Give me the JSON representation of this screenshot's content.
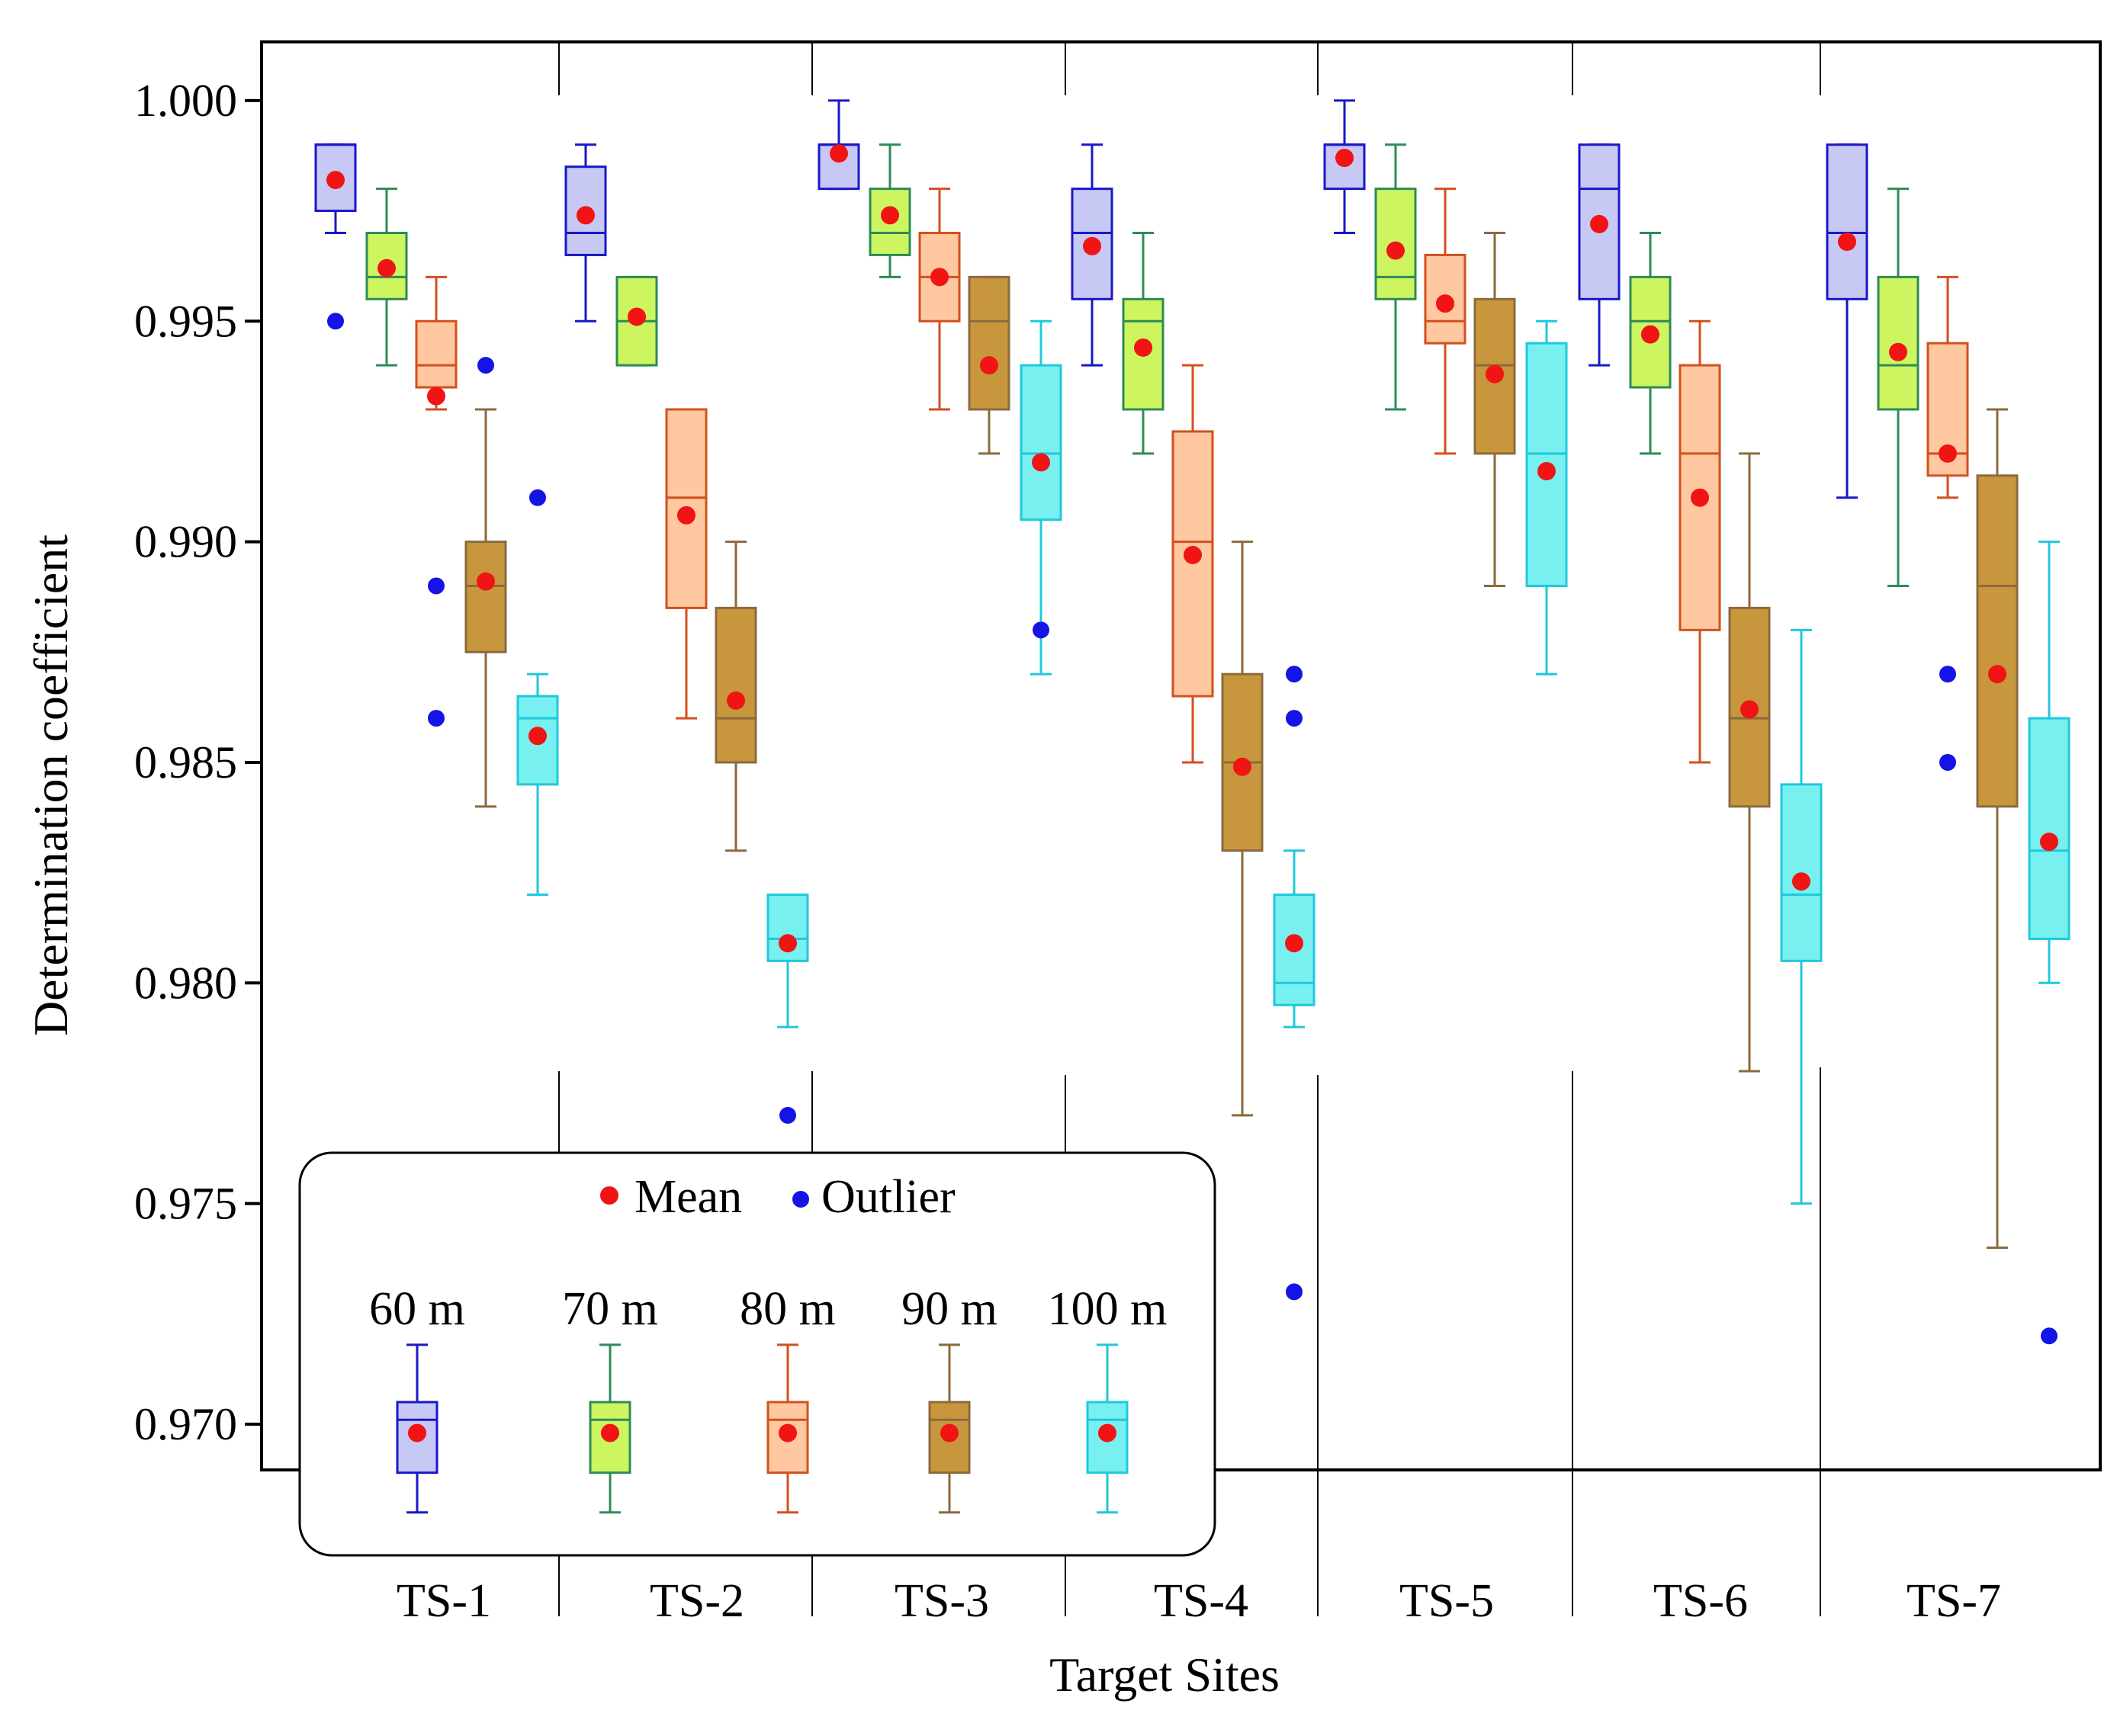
{
  "chart_data": {
    "type": "box",
    "xlabel": "Target Sites",
    "ylabel": "Determination coefficient",
    "ylim": [
      0.9688,
      1.0013
    ],
    "yticks": [
      "0.970",
      "0.975",
      "0.980",
      "0.985",
      "0.990",
      "0.995",
      "1.000"
    ],
    "ytick_values": [
      0.97,
      0.975,
      0.98,
      0.985,
      0.99,
      0.995,
      1.0
    ],
    "categories": [
      "TS-1",
      "TS-2",
      "TS-3",
      "TS-4",
      "TS-5",
      "TS-6",
      "TS-7"
    ],
    "series": [
      {
        "name": "60 m",
        "fill": "#c8c8f5",
        "stroke": "#1818c8",
        "boxes": [
          {
            "whislo": 0.997,
            "q1": 0.9975,
            "med": 0.999,
            "q3": 0.999,
            "whishi": 0.999,
            "mean": 0.9982,
            "fliers": [
              0.995
            ]
          },
          {
            "whislo": 0.995,
            "q1": 0.9965,
            "med": 0.997,
            "q3": 0.9985,
            "whishi": 0.999,
            "mean": 0.9974,
            "fliers": []
          },
          {
            "whislo": 0.998,
            "q1": 0.998,
            "med": 0.999,
            "q3": 0.999,
            "whishi": 1.0,
            "mean": 0.9988,
            "fliers": []
          },
          {
            "whislo": 0.994,
            "q1": 0.9955,
            "med": 0.997,
            "q3": 0.998,
            "whishi": 0.999,
            "mean": 0.9967,
            "fliers": []
          },
          {
            "whislo": 0.997,
            "q1": 0.998,
            "med": 0.999,
            "q3": 0.999,
            "whishi": 1.0,
            "mean": 0.9987,
            "fliers": []
          },
          {
            "whislo": 0.994,
            "q1": 0.9955,
            "med": 0.998,
            "q3": 0.999,
            "whishi": 0.999,
            "mean": 0.9972,
            "fliers": []
          },
          {
            "whislo": 0.991,
            "q1": 0.9955,
            "med": 0.997,
            "q3": 0.999,
            "whishi": 0.999,
            "mean": 0.9968,
            "fliers": []
          }
        ]
      },
      {
        "name": "70 m",
        "fill": "#ccf560",
        "stroke": "#2e8b57",
        "boxes": [
          {
            "whislo": 0.994,
            "q1": 0.9955,
            "med": 0.996,
            "q3": 0.997,
            "whishi": 0.998,
            "mean": 0.9962,
            "fliers": []
          },
          {
            "whislo": 0.994,
            "q1": 0.994,
            "med": 0.995,
            "q3": 0.996,
            "whishi": 0.996,
            "mean": 0.9951,
            "fliers": []
          },
          {
            "whislo": 0.996,
            "q1": 0.9965,
            "med": 0.997,
            "q3": 0.998,
            "whishi": 0.999,
            "mean": 0.9974,
            "fliers": []
          },
          {
            "whislo": 0.992,
            "q1": 0.993,
            "med": 0.995,
            "q3": 0.9955,
            "whishi": 0.997,
            "mean": 0.9944,
            "fliers": []
          },
          {
            "whislo": 0.993,
            "q1": 0.9955,
            "med": 0.996,
            "q3": 0.998,
            "whishi": 0.999,
            "mean": 0.9966,
            "fliers": []
          },
          {
            "whislo": 0.992,
            "q1": 0.9935,
            "med": 0.995,
            "q3": 0.996,
            "whishi": 0.997,
            "mean": 0.9947,
            "fliers": []
          },
          {
            "whislo": 0.989,
            "q1": 0.993,
            "med": 0.994,
            "q3": 0.996,
            "whishi": 0.998,
            "mean": 0.9943,
            "fliers": []
          }
        ]
      },
      {
        "name": "80 m",
        "fill": "#ffc8a0",
        "stroke": "#d2501e",
        "boxes": [
          {
            "whislo": 0.993,
            "q1": 0.9935,
            "med": 0.994,
            "q3": 0.995,
            "whishi": 0.996,
            "mean": 0.9933,
            "fliers": [
              0.989,
              0.986
            ]
          },
          {
            "whislo": 0.986,
            "q1": 0.9885,
            "med": 0.991,
            "q3": 0.993,
            "whishi": 0.993,
            "mean": 0.9906,
            "fliers": []
          },
          {
            "whislo": 0.993,
            "q1": 0.995,
            "med": 0.996,
            "q3": 0.997,
            "whishi": 0.998,
            "mean": 0.996,
            "fliers": []
          },
          {
            "whislo": 0.985,
            "q1": 0.9865,
            "med": 0.99,
            "q3": 0.9925,
            "whishi": 0.994,
            "mean": 0.9897,
            "fliers": []
          },
          {
            "whislo": 0.992,
            "q1": 0.9945,
            "med": 0.995,
            "q3": 0.9965,
            "whishi": 0.998,
            "mean": 0.9954,
            "fliers": []
          },
          {
            "whislo": 0.985,
            "q1": 0.988,
            "med": 0.992,
            "q3": 0.994,
            "whishi": 0.995,
            "mean": 0.991,
            "fliers": []
          },
          {
            "whislo": 0.991,
            "q1": 0.9915,
            "med": 0.992,
            "q3": 0.9945,
            "whishi": 0.996,
            "mean": 0.992,
            "fliers": [
              0.987,
              0.985
            ]
          }
        ]
      },
      {
        "name": "90 m",
        "fill": "#c8963c",
        "stroke": "#8b6a3e",
        "boxes": [
          {
            "whislo": 0.984,
            "q1": 0.9875,
            "med": 0.989,
            "q3": 0.99,
            "whishi": 0.993,
            "mean": 0.9891,
            "fliers": [
              0.994
            ]
          },
          {
            "whislo": 0.983,
            "q1": 0.985,
            "med": 0.986,
            "q3": 0.9885,
            "whishi": 0.99,
            "mean": 0.9864,
            "fliers": []
          },
          {
            "whislo": 0.992,
            "q1": 0.993,
            "med": 0.995,
            "q3": 0.996,
            "whishi": 0.996,
            "mean": 0.994,
            "fliers": []
          },
          {
            "whislo": 0.977,
            "q1": 0.983,
            "med": 0.985,
            "q3": 0.987,
            "whishi": 0.99,
            "mean": 0.9849,
            "fliers": []
          },
          {
            "whislo": 0.989,
            "q1": 0.992,
            "med": 0.994,
            "q3": 0.9955,
            "whishi": 0.997,
            "mean": 0.9938,
            "fliers": []
          },
          {
            "whislo": 0.978,
            "q1": 0.984,
            "med": 0.986,
            "q3": 0.9885,
            "whishi": 0.992,
            "mean": 0.9862,
            "fliers": []
          },
          {
            "whislo": 0.974,
            "q1": 0.984,
            "med": 0.989,
            "q3": 0.9915,
            "whishi": 0.993,
            "mean": 0.987,
            "fliers": []
          }
        ]
      },
      {
        "name": "100 m",
        "fill": "#78f0f0",
        "stroke": "#20c8dc",
        "boxes": [
          {
            "whislo": 0.982,
            "q1": 0.9845,
            "med": 0.986,
            "q3": 0.9865,
            "whishi": 0.987,
            "mean": 0.9856,
            "fliers": [
              0.991
            ]
          },
          {
            "whislo": 0.979,
            "q1": 0.9805,
            "med": 0.981,
            "q3": 0.982,
            "whishi": 0.982,
            "mean": 0.9809,
            "fliers": [
              0.977
            ]
          },
          {
            "whislo": 0.987,
            "q1": 0.9905,
            "med": 0.992,
            "q3": 0.994,
            "whishi": 0.995,
            "mean": 0.9918,
            "fliers": [
              0.988
            ]
          },
          {
            "whislo": 0.979,
            "q1": 0.9795,
            "med": 0.98,
            "q3": 0.982,
            "whishi": 0.983,
            "mean": 0.9809,
            "fliers": [
              0.987,
              0.986,
              0.973
            ]
          },
          {
            "whislo": 0.987,
            "q1": 0.989,
            "med": 0.992,
            "q3": 0.9945,
            "whishi": 0.995,
            "mean": 0.9916,
            "fliers": []
          },
          {
            "whislo": 0.975,
            "q1": 0.9805,
            "med": 0.982,
            "q3": 0.9845,
            "whishi": 0.988,
            "mean": 0.9823,
            "fliers": []
          },
          {
            "whislo": 0.98,
            "q1": 0.981,
            "med": 0.983,
            "q3": 0.986,
            "whishi": 0.99,
            "mean": 0.9832,
            "fliers": [
              0.972
            ]
          }
        ]
      }
    ],
    "legend": {
      "position": "bottom-left-inside",
      "mean_label": "Mean",
      "outlier_label": "Outlier",
      "mean_color": "#f01414",
      "outlier_color": "#1414e6",
      "sample_box": {
        "whislo": 0.968,
        "q1": 0.9689,
        "med": 0.9701,
        "q3": 0.9705,
        "whishi": 0.9718,
        "mean": 0.9698
      }
    }
  }
}
